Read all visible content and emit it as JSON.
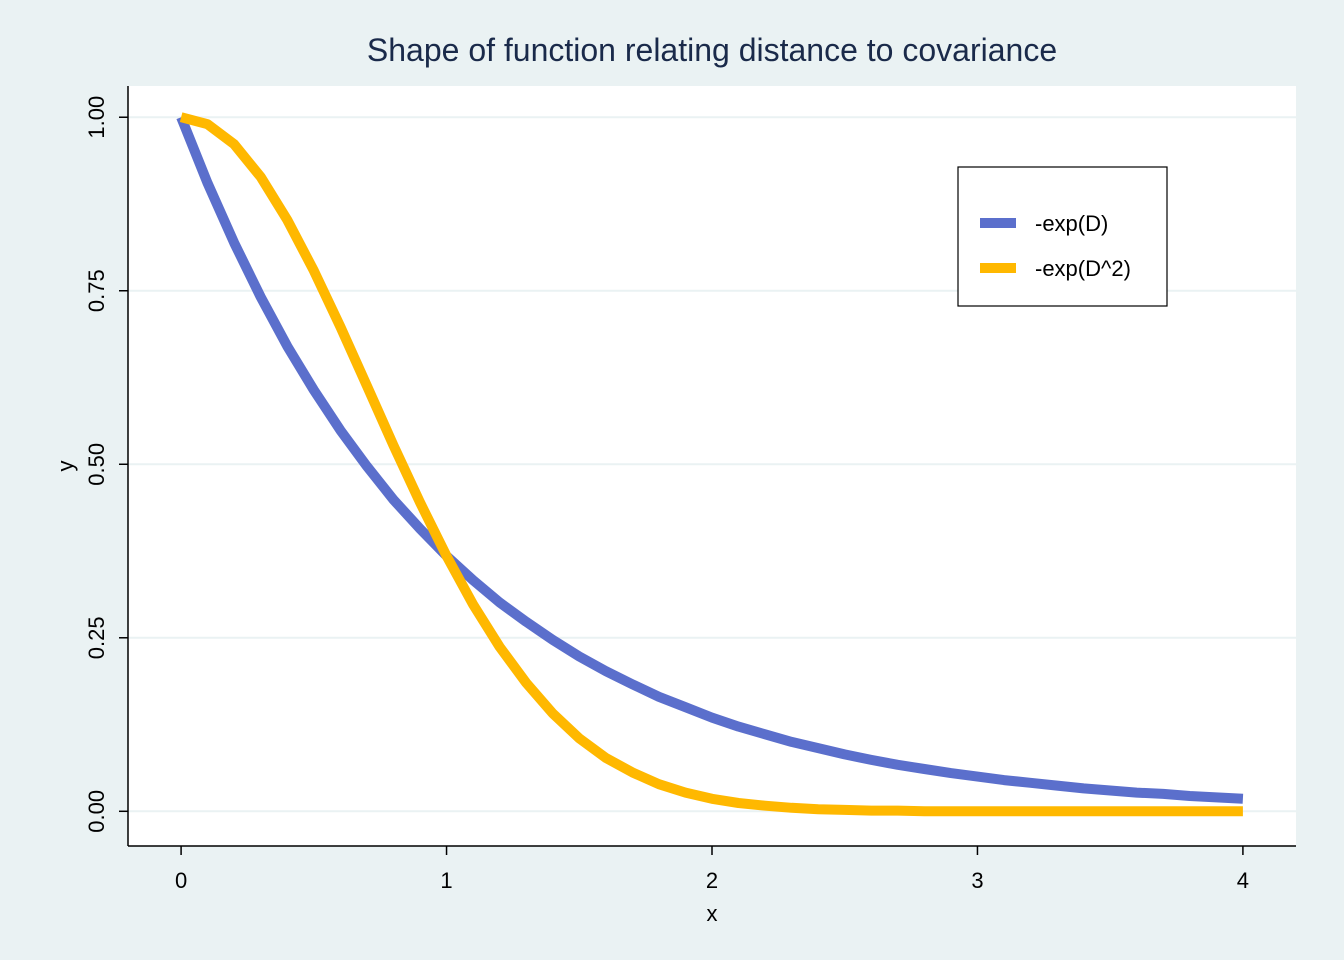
{
  "chart_data": {
    "type": "line",
    "title": "Shape of function relating distance to covariance",
    "xlabel": "x",
    "ylabel": "y",
    "xlim": [
      -0.2,
      4.2
    ],
    "ylim": [
      -0.05,
      1.045
    ],
    "xticks": [
      0,
      1,
      2,
      3,
      4
    ],
    "xtick_labels": [
      "0",
      "1",
      "2",
      "3",
      "4"
    ],
    "yticks": [
      0,
      0.25,
      0.5,
      0.75,
      1.0
    ],
    "ytick_labels": [
      "0.00",
      "0.25",
      "0.50",
      "0.75",
      "1.00"
    ],
    "grid": "horizontal",
    "legend_position": "top-right",
    "colors": {
      "background": "#eaf2f3",
      "plot_area": "#ffffff",
      "grid": "#eaf2f3"
    },
    "series": [
      {
        "name": "-exp(D)",
        "color": "#5b6fcc",
        "x": [
          0,
          0.1,
          0.2,
          0.3,
          0.4,
          0.5,
          0.6,
          0.7,
          0.8,
          0.9,
          1.0,
          1.1,
          1.2,
          1.3,
          1.4,
          1.5,
          1.6,
          1.7,
          1.8,
          1.9,
          2.0,
          2.1,
          2.2,
          2.3,
          2.4,
          2.5,
          2.6,
          2.7,
          2.8,
          2.9,
          3.0,
          3.1,
          3.2,
          3.3,
          3.4,
          3.5,
          3.6,
          3.7,
          3.8,
          3.9,
          4.0
        ],
        "y": [
          1.0,
          0.905,
          0.819,
          0.741,
          0.67,
          0.607,
          0.549,
          0.497,
          0.449,
          0.407,
          0.368,
          0.333,
          0.301,
          0.273,
          0.247,
          0.223,
          0.202,
          0.183,
          0.165,
          0.15,
          0.135,
          0.122,
          0.111,
          0.1,
          0.091,
          0.082,
          0.074,
          0.067,
          0.061,
          0.055,
          0.05,
          0.045,
          0.041,
          0.037,
          0.033,
          0.03,
          0.027,
          0.025,
          0.022,
          0.02,
          0.018
        ]
      },
      {
        "name": "-exp(D^2)",
        "color": "#ffb800",
        "x": [
          0,
          0.1,
          0.2,
          0.3,
          0.4,
          0.5,
          0.6,
          0.7,
          0.8,
          0.9,
          1.0,
          1.1,
          1.2,
          1.3,
          1.4,
          1.5,
          1.6,
          1.7,
          1.8,
          1.9,
          2.0,
          2.1,
          2.2,
          2.3,
          2.4,
          2.5,
          2.6,
          2.7,
          2.8,
          2.9,
          3.0,
          3.1,
          3.2,
          3.3,
          3.4,
          3.5,
          3.6,
          3.7,
          3.8,
          3.9,
          4.0
        ],
        "y": [
          1.0,
          0.99,
          0.961,
          0.914,
          0.852,
          0.779,
          0.698,
          0.613,
          0.527,
          0.445,
          0.368,
          0.298,
          0.237,
          0.185,
          0.141,
          0.105,
          0.077,
          0.056,
          0.039,
          0.027,
          0.018,
          0.012,
          0.008,
          0.005,
          0.003,
          0.002,
          0.001,
          0.001,
          0.0,
          0.0,
          0.0,
          0.0,
          0.0,
          0.0,
          0.0,
          0.0,
          0.0,
          0.0,
          0.0,
          0.0,
          0.0
        ]
      }
    ]
  }
}
